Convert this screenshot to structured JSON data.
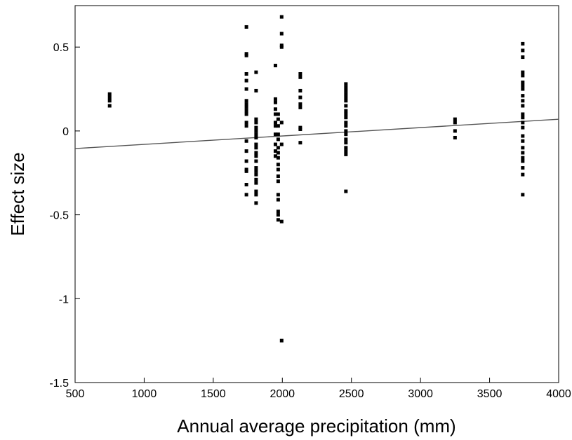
{
  "chart_data": {
    "type": "scatter",
    "xlabel": "Annual average precipitation (mm)",
    "ylabel": "Effect size",
    "xlim": [
      500,
      4000
    ],
    "ylim": [
      -1.5,
      0.75
    ],
    "x_ticks": [
      500,
      1000,
      1500,
      2000,
      2500,
      3000,
      3500,
      4000
    ],
    "x_tick_labels": [
      "500",
      "1000",
      "1500",
      "2000",
      "2500",
      "3000",
      "3500",
      "4000"
    ],
    "y_ticks": [
      -1.5,
      -1,
      -0.5,
      0,
      0.5
    ],
    "y_tick_labels": [
      "-1.5",
      "-1",
      "-0.5",
      "0",
      "0.5"
    ],
    "grid": false,
    "colors": {
      "points": "#000000",
      "fit_line": "#555555"
    },
    "series": [
      {
        "values": [
          {
            "x": 750,
            "y": 0.22
          },
          {
            "x": 750,
            "y": 0.2
          },
          {
            "x": 750,
            "y": 0.18
          },
          {
            "x": 750,
            "y": 0.15
          },
          {
            "x": 1740,
            "y": 0.62
          },
          {
            "x": 1740,
            "y": 0.46
          },
          {
            "x": 1740,
            "y": 0.45
          },
          {
            "x": 1740,
            "y": 0.34
          },
          {
            "x": 1740,
            "y": 0.3
          },
          {
            "x": 1740,
            "y": 0.25
          },
          {
            "x": 1740,
            "y": 0.18
          },
          {
            "x": 1740,
            "y": 0.16
          },
          {
            "x": 1740,
            "y": 0.14
          },
          {
            "x": 1740,
            "y": 0.12
          },
          {
            "x": 1740,
            "y": 0.1
          },
          {
            "x": 1740,
            "y": 0.05
          },
          {
            "x": 1740,
            "y": 0.03
          },
          {
            "x": 1740,
            "y": -0.06
          },
          {
            "x": 1740,
            "y": -0.12
          },
          {
            "x": 1740,
            "y": -0.18
          },
          {
            "x": 1740,
            "y": -0.23
          },
          {
            "x": 1740,
            "y": -0.24
          },
          {
            "x": 1740,
            "y": -0.32
          },
          {
            "x": 1740,
            "y": -0.38
          },
          {
            "x": 1810,
            "y": 0.35
          },
          {
            "x": 1810,
            "y": 0.24
          },
          {
            "x": 1810,
            "y": 0.07
          },
          {
            "x": 1810,
            "y": 0.05
          },
          {
            "x": 1810,
            "y": 0.02
          },
          {
            "x": 1810,
            "y": 0.0
          },
          {
            "x": 1810,
            "y": -0.02
          },
          {
            "x": 1810,
            "y": -0.04
          },
          {
            "x": 1810,
            "y": -0.08
          },
          {
            "x": 1810,
            "y": -0.1
          },
          {
            "x": 1810,
            "y": -0.13
          },
          {
            "x": 1810,
            "y": -0.15
          },
          {
            "x": 1810,
            "y": -0.18
          },
          {
            "x": 1810,
            "y": -0.22
          },
          {
            "x": 1810,
            "y": -0.24
          },
          {
            "x": 1810,
            "y": -0.26
          },
          {
            "x": 1810,
            "y": -0.29
          },
          {
            "x": 1810,
            "y": -0.31
          },
          {
            "x": 1810,
            "y": -0.36
          },
          {
            "x": 1810,
            "y": -0.38
          },
          {
            "x": 1810,
            "y": -0.43
          },
          {
            "x": 1950,
            "y": 0.39
          },
          {
            "x": 1950,
            "y": 0.19
          },
          {
            "x": 1950,
            "y": 0.17
          },
          {
            "x": 1950,
            "y": 0.13
          },
          {
            "x": 1950,
            "y": 0.1
          },
          {
            "x": 1950,
            "y": 0.05
          },
          {
            "x": 1950,
            "y": 0.03
          },
          {
            "x": 1950,
            "y": -0.02
          },
          {
            "x": 1950,
            "y": -0.08
          },
          {
            "x": 1950,
            "y": -0.12
          },
          {
            "x": 1950,
            "y": -0.15
          },
          {
            "x": 1970,
            "y": 0.1
          },
          {
            "x": 1970,
            "y": 0.07
          },
          {
            "x": 1970,
            "y": 0.03
          },
          {
            "x": 1970,
            "y": -0.02
          },
          {
            "x": 1970,
            "y": -0.05
          },
          {
            "x": 1970,
            "y": -0.1
          },
          {
            "x": 1970,
            "y": -0.13
          },
          {
            "x": 1970,
            "y": -0.16
          },
          {
            "x": 1970,
            "y": -0.2
          },
          {
            "x": 1970,
            "y": -0.23
          },
          {
            "x": 1970,
            "y": -0.27
          },
          {
            "x": 1970,
            "y": -0.3
          },
          {
            "x": 1970,
            "y": -0.38
          },
          {
            "x": 1970,
            "y": -0.41
          },
          {
            "x": 1970,
            "y": -0.48
          },
          {
            "x": 1970,
            "y": -0.5
          },
          {
            "x": 1970,
            "y": -0.53
          },
          {
            "x": 1995,
            "y": 0.68
          },
          {
            "x": 1995,
            "y": 0.58
          },
          {
            "x": 1995,
            "y": 0.51
          },
          {
            "x": 1995,
            "y": 0.5
          },
          {
            "x": 1995,
            "y": 0.05
          },
          {
            "x": 1995,
            "y": -0.08
          },
          {
            "x": 1995,
            "y": -0.54
          },
          {
            "x": 1995,
            "y": -1.25
          },
          {
            "x": 2130,
            "y": 0.34
          },
          {
            "x": 2130,
            "y": 0.32
          },
          {
            "x": 2130,
            "y": 0.24
          },
          {
            "x": 2130,
            "y": 0.2
          },
          {
            "x": 2130,
            "y": 0.16
          },
          {
            "x": 2130,
            "y": 0.14
          },
          {
            "x": 2130,
            "y": 0.02
          },
          {
            "x": 2130,
            "y": 0.01
          },
          {
            "x": 2130,
            "y": -0.07
          },
          {
            "x": 2460,
            "y": 0.28
          },
          {
            "x": 2460,
            "y": 0.26
          },
          {
            "x": 2460,
            "y": 0.24
          },
          {
            "x": 2460,
            "y": 0.22
          },
          {
            "x": 2460,
            "y": 0.2
          },
          {
            "x": 2460,
            "y": 0.18
          },
          {
            "x": 2460,
            "y": 0.15
          },
          {
            "x": 2460,
            "y": 0.12
          },
          {
            "x": 2460,
            "y": 0.1
          },
          {
            "x": 2460,
            "y": 0.08
          },
          {
            "x": 2460,
            "y": 0.05
          },
          {
            "x": 2460,
            "y": 0.03
          },
          {
            "x": 2460,
            "y": 0.0
          },
          {
            "x": 2460,
            "y": -0.02
          },
          {
            "x": 2460,
            "y": -0.05
          },
          {
            "x": 2460,
            "y": -0.07
          },
          {
            "x": 2460,
            "y": -0.1
          },
          {
            "x": 2460,
            "y": -0.12
          },
          {
            "x": 2460,
            "y": -0.14
          },
          {
            "x": 2460,
            "y": -0.36
          },
          {
            "x": 3250,
            "y": 0.07
          },
          {
            "x": 3250,
            "y": 0.05
          },
          {
            "x": 3250,
            "y": 0.0
          },
          {
            "x": 3250,
            "y": -0.04
          },
          {
            "x": 3740,
            "y": 0.52
          },
          {
            "x": 3740,
            "y": 0.48
          },
          {
            "x": 3740,
            "y": 0.44
          },
          {
            "x": 3740,
            "y": 0.35
          },
          {
            "x": 3740,
            "y": 0.33
          },
          {
            "x": 3740,
            "y": 0.29
          },
          {
            "x": 3740,
            "y": 0.27
          },
          {
            "x": 3740,
            "y": 0.25
          },
          {
            "x": 3740,
            "y": 0.21
          },
          {
            "x": 3740,
            "y": 0.18
          },
          {
            "x": 3740,
            "y": 0.15
          },
          {
            "x": 3740,
            "y": 0.1
          },
          {
            "x": 3740,
            "y": 0.08
          },
          {
            "x": 3740,
            "y": 0.05
          },
          {
            "x": 3740,
            "y": 0.02
          },
          {
            "x": 3740,
            "y": -0.03
          },
          {
            "x": 3740,
            "y": -0.06
          },
          {
            "x": 3740,
            "y": -0.1
          },
          {
            "x": 3740,
            "y": -0.13
          },
          {
            "x": 3740,
            "y": -0.16
          },
          {
            "x": 3740,
            "y": -0.18
          },
          {
            "x": 3740,
            "y": -0.22
          },
          {
            "x": 3740,
            "y": -0.26
          },
          {
            "x": 3740,
            "y": -0.38
          }
        ]
      }
    ],
    "fit_line": {
      "x": [
        500,
        4000
      ],
      "y": [
        -0.105,
        0.07
      ]
    }
  }
}
